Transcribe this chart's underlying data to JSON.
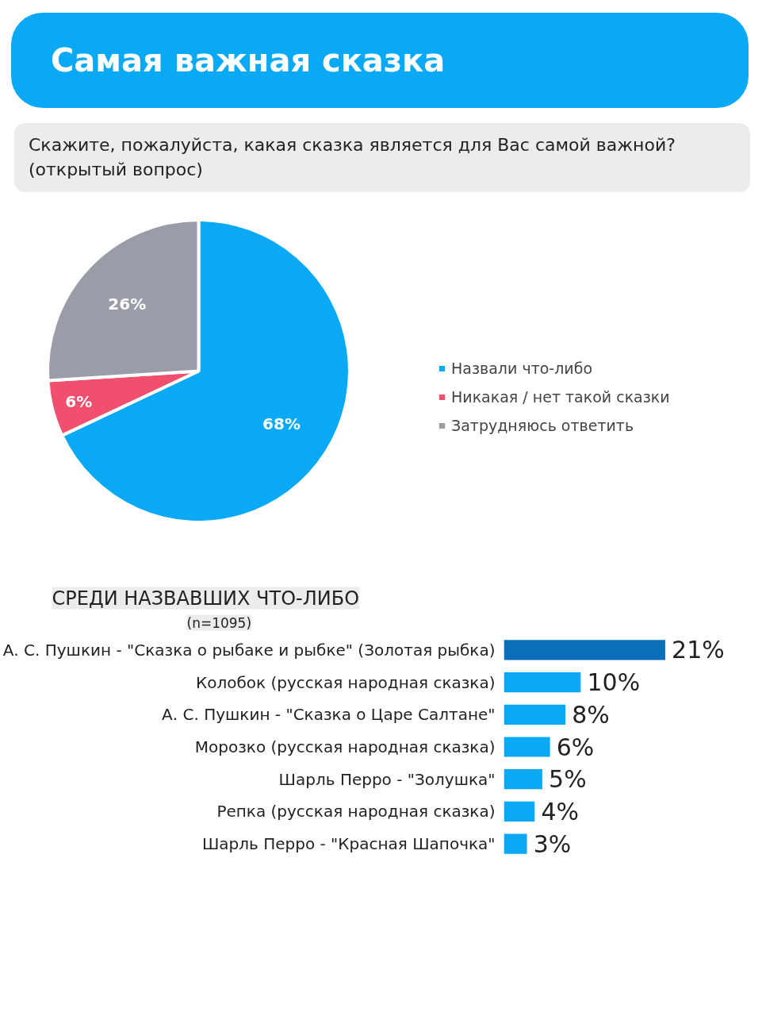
{
  "chart_data": [
    {
      "type": "pie",
      "title": "Самая важная сказка",
      "subtitle": "Скажите, пожалуйста, какая сказка является для Вас самой важной? (открытый вопрос)",
      "categories": [
        "Назвали что-либо",
        "Никакая / нет такой сказки",
        "Затрудняюсь ответить"
      ],
      "values": [
        68,
        6,
        26
      ],
      "colors": [
        "#0aa9f5",
        "#f0506e",
        "#9a9ca8"
      ],
      "value_labels": [
        "68%",
        "6%",
        "26%"
      ],
      "legend": "right"
    },
    {
      "type": "bar",
      "orientation": "horizontal",
      "title": "СРЕДИ НАЗВАВШИХ ЧТО-ЛИБО",
      "subtitle": "(n=1095)",
      "categories": [
        "А. С. Пушкин - \"Сказка о рыбаке и рыбке\" (Золотая рыбка)",
        "Колобок (русская народная сказка)",
        "А. С. Пушкин - \"Сказка о Царе Салтане\"",
        "Морозко (русская народная сказка)",
        "Шарль Перро - \"Золушка\"",
        "Репка (русская народная сказка)",
        "Шарль Перро - \"Красная Шапочка\""
      ],
      "values": [
        21,
        10,
        8,
        6,
        5,
        4,
        3
      ],
      "colors": [
        "#0a6fb8",
        "#0aa9f5",
        "#0aa9f5",
        "#0aa9f5",
        "#0aa9f5",
        "#0aa9f5",
        "#0aa9f5"
      ],
      "value_labels": [
        "21%",
        "10%",
        "8%",
        "6%",
        "5%",
        "4%",
        "3%"
      ]
    }
  ]
}
